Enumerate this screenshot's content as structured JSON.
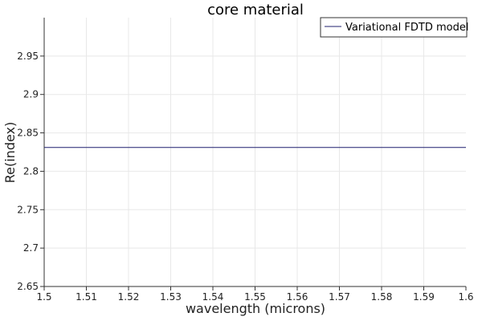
{
  "chart_data": {
    "type": "line",
    "title": "core material",
    "xlabel": "wavelength (microns)",
    "ylabel": "Re(index)",
    "xlim": [
      1.5,
      1.6
    ],
    "ylim": [
      2.65,
      3.0
    ],
    "x_ticks": [
      "1.5",
      "1.51",
      "1.52",
      "1.53",
      "1.54",
      "1.55",
      "1.56",
      "1.57",
      "1.58",
      "1.59",
      "1.6"
    ],
    "y_ticks": [
      "2.65",
      "2.7",
      "2.75",
      "2.8",
      "2.85",
      "2.9",
      "2.95"
    ],
    "grid": true,
    "legend_position": "top-right",
    "series": [
      {
        "name": "Variational FDTD model",
        "color": "#1f1f6e",
        "x": [
          1.5,
          1.6
        ],
        "y": [
          2.831,
          2.831
        ]
      }
    ]
  }
}
